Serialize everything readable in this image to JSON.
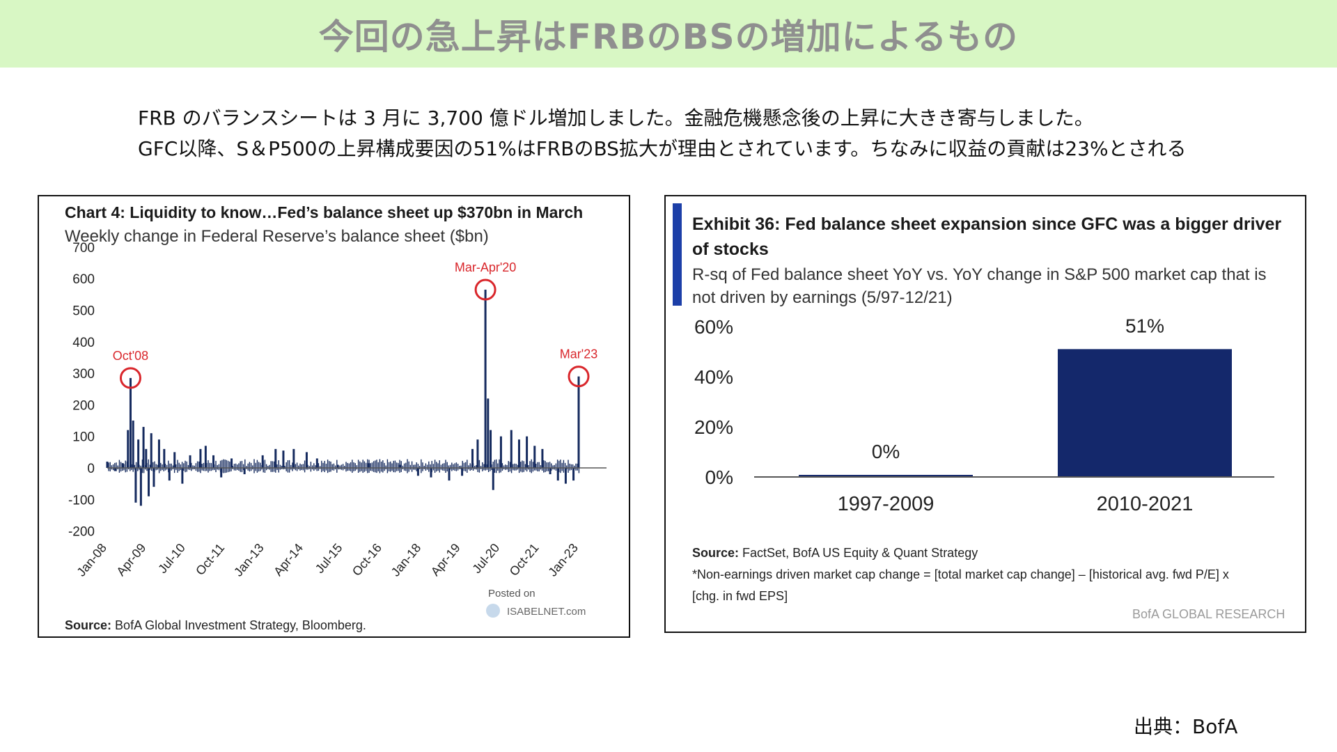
{
  "header": {
    "title": "今回の急上昇はFRBのBSの増加によるもの"
  },
  "intro": {
    "line1": "FRB のバランスシートは 3 月に 3,700 億ドル増加しました。金融危機懸念後の上昇に大きき寄与しました。",
    "line2": "GFC以降、S＆P500の上昇構成要因の51%はFRBのBS拡大が理由とされています。ちなみに収益の貢献は23%とされる"
  },
  "left_chart": {
    "title": "Chart 4: Liquidity to know…Fed’s balance sheet up $370bn in March",
    "subtitle": "Weekly change in Federal Reserve’s balance sheet ($bn)",
    "source_label": "Source:",
    "source_text": "BofA Global Investment Strategy, Bloomberg.",
    "watermark_posted": "Posted on",
    "watermark_site": "ISABELNET.com",
    "series_color": "#152a5e",
    "highlight_color": "#d9262b"
  },
  "right_chart": {
    "title_line1": "Exhibit 36: Fed balance sheet expansion since GFC was a bigger driver",
    "title_line2": "of stocks",
    "subtitle_line1": "R-sq of Fed balance sheet YoY vs. YoY change in S&P 500 market cap that is",
    "subtitle_line2": "not driven by earnings (5/97-12/21)",
    "source_label": "Source:",
    "source_text": "FactSet, BofA US Equity & Quant Strategy",
    "note_line1": "*Non-earnings  driven market cap change = [total market cap change] – [historical  avg.  fwd P/E] x",
    "note_line2": "[chg.  in fwd EPS]",
    "brand": "BofA GLOBAL RESEARCH",
    "bar_color": "#14286b",
    "accent_color": "#1c3fa8"
  },
  "credit": "出典：BofA",
  "chart_data": [
    {
      "type": "bar",
      "title": "Chart 4: Liquidity to know…Fed’s balance sheet up $370bn in March",
      "subtitle": "Weekly change in Federal Reserve’s balance sheet ($bn)",
      "ylim": [
        -200,
        700
      ],
      "yticks": [
        700,
        600,
        500,
        400,
        300,
        200,
        100,
        0,
        -100,
        -200
      ],
      "xticks": [
        "Jan-08",
        "Apr-09",
        "Jul-10",
        "Oct-11",
        "Jan-13",
        "Apr-14",
        "Jul-15",
        "Oct-16",
        "Jan-18",
        "Apr-19",
        "Jul-20",
        "Oct-21",
        "Jan-23"
      ],
      "x_range": [
        "2008-01",
        "2023-03"
      ],
      "grid": false,
      "annotations": [
        {
          "label": "Oct'08",
          "x": "2008-10",
          "y": 285
        },
        {
          "label": "Mar-Apr'20",
          "x": "2020-03",
          "y": 565
        },
        {
          "label": "Mar'23",
          "x": "2023-03",
          "y": 290
        }
      ],
      "series": [
        {
          "points": [
            [
              "2008-01",
              20
            ],
            [
              "2008-04",
              -10
            ],
            [
              "2008-07",
              15
            ],
            [
              "2008-09",
              120
            ],
            [
              "2008-10",
              285
            ],
            [
              "2008-11",
              150
            ],
            [
              "2008-12",
              -110
            ],
            [
              "2009-01",
              90
            ],
            [
              "2009-02",
              -120
            ],
            [
              "2009-03",
              130
            ],
            [
              "2009-04",
              60
            ],
            [
              "2009-05",
              -90
            ],
            [
              "2009-06",
              110
            ],
            [
              "2009-07",
              -60
            ],
            [
              "2009-09",
              90
            ],
            [
              "2009-11",
              60
            ],
            [
              "2010-01",
              -40
            ],
            [
              "2010-03",
              50
            ],
            [
              "2010-06",
              -50
            ],
            [
              "2010-09",
              40
            ],
            [
              "2011-01",
              60
            ],
            [
              "2011-03",
              70
            ],
            [
              "2011-06",
              40
            ],
            [
              "2011-09",
              -30
            ],
            [
              "2012-01",
              30
            ],
            [
              "2012-06",
              -20
            ],
            [
              "2013-01",
              40
            ],
            [
              "2013-06",
              60
            ],
            [
              "2013-09",
              55
            ],
            [
              "2014-01",
              60
            ],
            [
              "2014-06",
              50
            ],
            [
              "2014-10",
              30
            ],
            [
              "2015-06",
              10
            ],
            [
              "2016-06",
              15
            ],
            [
              "2017-06",
              10
            ],
            [
              "2018-01",
              -25
            ],
            [
              "2018-06",
              -30
            ],
            [
              "2019-01",
              -40
            ],
            [
              "2019-06",
              -25
            ],
            [
              "2019-10",
              60
            ],
            [
              "2019-12",
              90
            ],
            [
              "2020-03",
              565
            ],
            [
              "2020-04",
              220
            ],
            [
              "2020-05",
              120
            ],
            [
              "2020-06",
              -70
            ],
            [
              "2020-09",
              100
            ],
            [
              "2021-01",
              120
            ],
            [
              "2021-04",
              90
            ],
            [
              "2021-07",
              100
            ],
            [
              "2021-10",
              70
            ],
            [
              "2022-01",
              60
            ],
            [
              "2022-04",
              -20
            ],
            [
              "2022-07",
              -40
            ],
            [
              "2022-10",
              -50
            ],
            [
              "2023-01",
              -40
            ],
            [
              "2023-03",
              290
            ]
          ]
        }
      ]
    },
    {
      "type": "bar",
      "title": "Exhibit 36: Fed balance sheet expansion since GFC was a bigger driver of stocks",
      "subtitle": "R-sq of Fed balance sheet YoY vs. YoY change in S&P 500 market cap that is not driven by earnings (5/97-12/21)",
      "categories": [
        "1997-2009",
        "2010-2021"
      ],
      "values": [
        0,
        51
      ],
      "data_labels": [
        "0%",
        "51%"
      ],
      "yticks": [
        "60%",
        "40%",
        "20%",
        "0%"
      ],
      "ylim": [
        0,
        60
      ],
      "grid": false
    }
  ]
}
